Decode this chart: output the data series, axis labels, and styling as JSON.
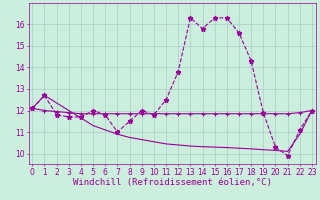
{
  "xlabel": "Windchill (Refroidissement éolien,°C)",
  "background_color": "#cceedd",
  "grid_color": "#aacccc",
  "line_color": "#990099",
  "x": [
    0,
    1,
    2,
    3,
    4,
    5,
    6,
    7,
    8,
    9,
    10,
    11,
    12,
    13,
    14,
    15,
    16,
    17,
    18,
    19,
    20,
    21,
    22,
    23
  ],
  "series1": [
    12.1,
    12.7,
    11.8,
    11.7,
    11.7,
    12.0,
    11.8,
    11.0,
    11.5,
    12.0,
    11.8,
    12.5,
    13.8,
    16.3,
    15.8,
    16.3,
    16.3,
    15.6,
    14.3,
    11.9,
    10.3,
    9.9,
    11.1,
    12.0
  ],
  "series2": [
    12.1,
    12.0,
    11.95,
    11.9,
    11.85,
    11.85,
    11.85,
    11.85,
    11.85,
    11.85,
    11.85,
    11.85,
    11.85,
    11.85,
    11.85,
    11.85,
    11.85,
    11.85,
    11.85,
    11.85,
    11.85,
    11.85,
    11.9,
    12.0
  ],
  "series3": [
    12.1,
    12.7,
    12.35,
    12.0,
    11.65,
    11.3,
    11.1,
    10.9,
    10.75,
    10.65,
    10.55,
    10.45,
    10.4,
    10.35,
    10.32,
    10.3,
    10.28,
    10.25,
    10.22,
    10.18,
    10.15,
    10.1,
    10.9,
    12.0
  ],
  "ylim": [
    9.5,
    17.0
  ],
  "yticks": [
    10,
    11,
    12,
    13,
    14,
    15,
    16
  ],
  "xticks": [
    0,
    1,
    2,
    3,
    4,
    5,
    6,
    7,
    8,
    9,
    10,
    11,
    12,
    13,
    14,
    15,
    16,
    17,
    18,
    19,
    20,
    21,
    22,
    23
  ],
  "font_color": "#990099",
  "tick_fontsize": 5.5,
  "xlabel_fontsize": 6.5
}
